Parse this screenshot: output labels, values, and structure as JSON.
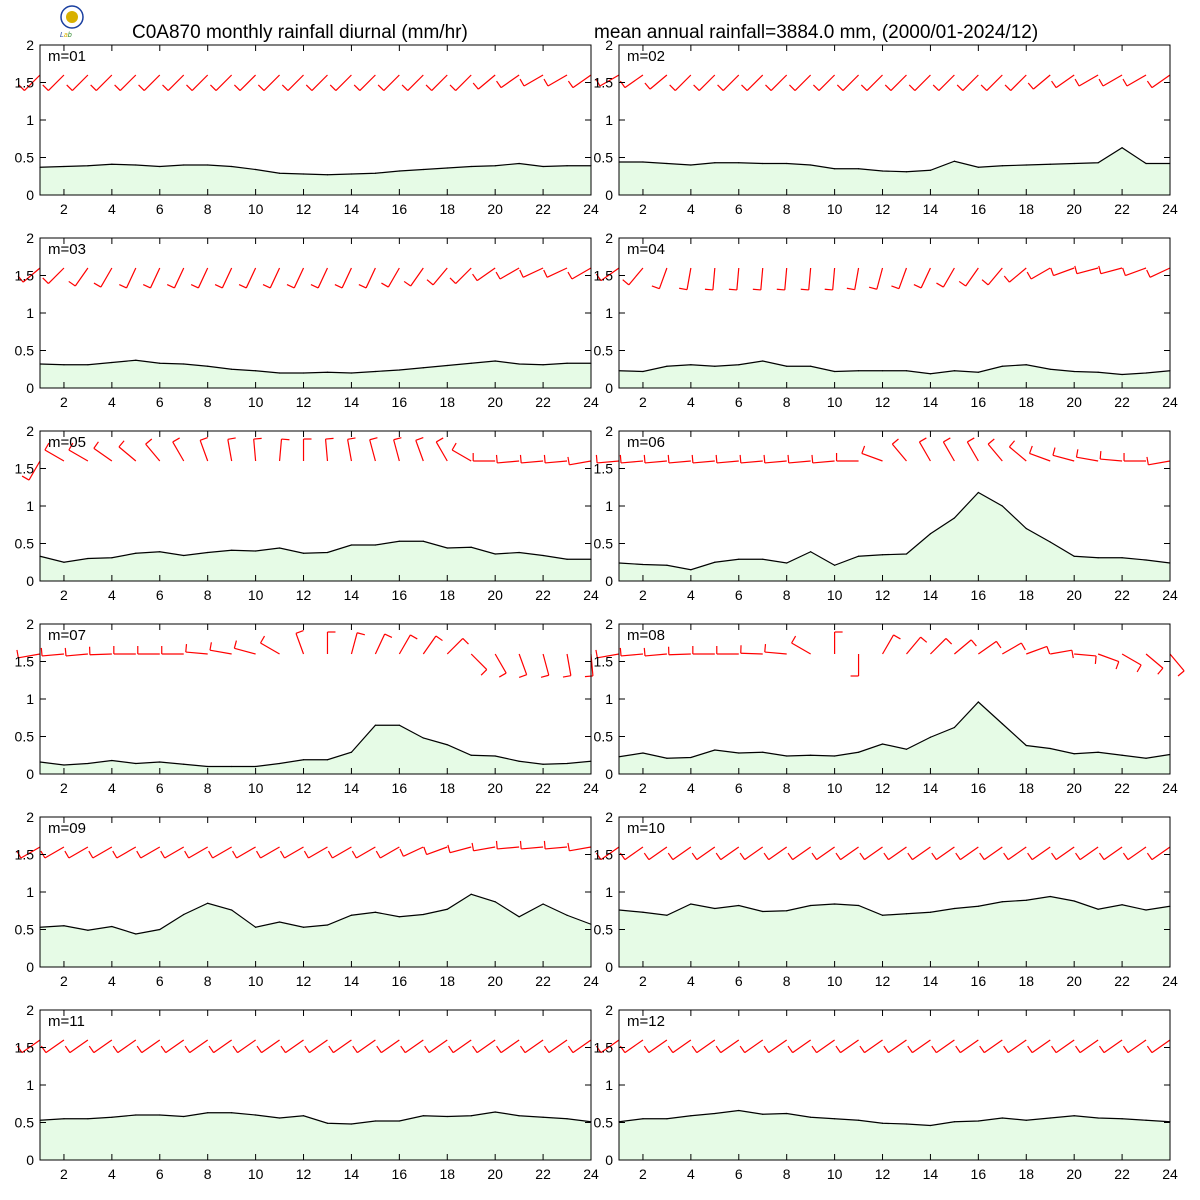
{
  "title_left": "C0A870 monthly rainfall diurnal (mm/hr)",
  "title_right": "mean annual rainfall=3884.0 mm, (2000/01-2024/12)",
  "logo": {
    "text": "Lab",
    "colors": [
      "#1a3fa0",
      "#d8b000",
      "#2c8a2c"
    ]
  },
  "colors": {
    "fill": "#e6fbe6",
    "line": "#000000",
    "barb": "#ff0000"
  },
  "chart_data": {
    "type": "area",
    "x": [
      1,
      2,
      3,
      4,
      5,
      6,
      7,
      8,
      9,
      10,
      11,
      12,
      13,
      14,
      15,
      16,
      17,
      18,
      19,
      20,
      21,
      22,
      23,
      24
    ],
    "xticks": [
      2,
      4,
      6,
      8,
      10,
      12,
      14,
      16,
      18,
      20,
      22,
      24
    ],
    "yticks": [
      0,
      0.5,
      1,
      1.5,
      2
    ],
    "ytick_labels": [
      "0",
      "0.5",
      "1",
      "1.5",
      "2"
    ],
    "xlim": [
      1,
      24
    ],
    "ylim": [
      0,
      2
    ],
    "wind_barb_level": 1.6,
    "panels": [
      {
        "label": "m=01",
        "values": [
          0.37,
          0.38,
          0.39,
          0.41,
          0.4,
          0.38,
          0.4,
          0.4,
          0.38,
          0.34,
          0.29,
          0.28,
          0.27,
          0.28,
          0.29,
          0.32,
          0.34,
          0.36,
          0.38,
          0.39,
          0.42,
          0.38,
          0.39,
          0.39
        ],
        "wind_dir": [
          225,
          225,
          225,
          225,
          225,
          225,
          225,
          225,
          225,
          225,
          225,
          225,
          225,
          225,
          225,
          225,
          225,
          225,
          225,
          230,
          235,
          240,
          240,
          235
        ]
      },
      {
        "label": "m=02",
        "values": [
          0.44,
          0.44,
          0.42,
          0.4,
          0.43,
          0.43,
          0.42,
          0.42,
          0.4,
          0.35,
          0.35,
          0.32,
          0.31,
          0.33,
          0.45,
          0.37,
          0.39,
          0.4,
          0.41,
          0.42,
          0.43,
          0.63,
          0.42,
          0.42
        ],
        "wind_dir": [
          240,
          235,
          230,
          225,
          225,
          225,
          225,
          225,
          225,
          225,
          225,
          225,
          225,
          225,
          225,
          225,
          225,
          225,
          230,
          235,
          240,
          240,
          240,
          235
        ]
      },
      {
        "label": "m=03",
        "values": [
          0.32,
          0.31,
          0.31,
          0.34,
          0.37,
          0.33,
          0.32,
          0.29,
          0.25,
          0.23,
          0.2,
          0.2,
          0.21,
          0.2,
          0.22,
          0.24,
          0.27,
          0.3,
          0.33,
          0.36,
          0.32,
          0.31,
          0.33,
          0.33
        ],
        "wind_dir": [
          230,
          225,
          215,
          210,
          205,
          205,
          205,
          205,
          205,
          205,
          205,
          205,
          205,
          205,
          205,
          210,
          215,
          220,
          225,
          235,
          240,
          245,
          245,
          240
        ]
      },
      {
        "label": "m=04",
        "values": [
          0.23,
          0.22,
          0.29,
          0.31,
          0.29,
          0.31,
          0.36,
          0.29,
          0.29,
          0.22,
          0.23,
          0.23,
          0.23,
          0.19,
          0.23,
          0.21,
          0.29,
          0.31,
          0.25,
          0.22,
          0.21,
          0.18,
          0.2,
          0.23
        ],
        "wind_dir": [
          235,
          220,
          200,
          190,
          185,
          185,
          185,
          185,
          185,
          185,
          190,
          195,
          200,
          205,
          210,
          215,
          220,
          230,
          240,
          250,
          255,
          255,
          250,
          245
        ]
      },
      {
        "label": "m=05",
        "values": [
          0.33,
          0.25,
          0.3,
          0.31,
          0.37,
          0.39,
          0.34,
          0.38,
          0.41,
          0.4,
          0.44,
          0.37,
          0.38,
          0.48,
          0.48,
          0.53,
          0.53,
          0.44,
          0.45,
          0.36,
          0.38,
          0.34,
          0.29,
          0.29
        ],
        "wind_dir": [
          210,
          300,
          300,
          305,
          310,
          320,
          330,
          340,
          350,
          355,
          5,
          0,
          355,
          350,
          345,
          345,
          340,
          330,
          300,
          270,
          265,
          265,
          265,
          260
        ]
      },
      {
        "label": "m=06",
        "values": [
          0.24,
          0.22,
          0.21,
          0.15,
          0.25,
          0.29,
          0.29,
          0.24,
          0.39,
          0.21,
          0.33,
          0.35,
          0.36,
          0.63,
          0.84,
          1.18,
          1.0,
          0.7,
          0.52,
          0.33,
          0.31,
          0.31,
          0.28,
          0.24
        ],
        "wind_dir": [
          265,
          265,
          265,
          265,
          265,
          265,
          265,
          265,
          265,
          265,
          270,
          290,
          320,
          330,
          330,
          330,
          320,
          310,
          290,
          285,
          280,
          275,
          270,
          260
        ]
      },
      {
        "label": "m=07",
        "values": [
          0.16,
          0.12,
          0.14,
          0.18,
          0.14,
          0.16,
          0.13,
          0.1,
          0.1,
          0.1,
          0.14,
          0.19,
          0.19,
          0.29,
          0.65,
          0.65,
          0.48,
          0.39,
          0.25,
          0.24,
          0.17,
          0.13,
          0.14,
          0.17
        ],
        "wind_dir": [
          260,
          265,
          265,
          268,
          270,
          270,
          270,
          275,
          280,
          285,
          300,
          340,
          0,
          15,
          25,
          30,
          35,
          45,
          135,
          150,
          160,
          165,
          170,
          175
        ]
      },
      {
        "label": "m=08",
        "values": [
          0.23,
          0.28,
          0.21,
          0.22,
          0.32,
          0.28,
          0.29,
          0.24,
          0.25,
          0.24,
          0.29,
          0.4,
          0.33,
          0.49,
          0.62,
          0.96,
          0.67,
          0.38,
          0.34,
          0.27,
          0.29,
          0.25,
          0.21,
          0.26
        ],
        "wind_dir": [
          260,
          265,
          265,
          268,
          270,
          270,
          272,
          275,
          300,
          0,
          180,
          30,
          40,
          45,
          50,
          55,
          60,
          70,
          80,
          95,
          110,
          120,
          130,
          140
        ]
      },
      {
        "label": "m=09",
        "values": [
          0.53,
          0.55,
          0.49,
          0.54,
          0.44,
          0.5,
          0.7,
          0.85,
          0.76,
          0.53,
          0.6,
          0.53,
          0.56,
          0.69,
          0.73,
          0.67,
          0.7,
          0.77,
          0.97,
          0.87,
          0.67,
          0.84,
          0.69,
          0.57
        ],
        "wind_dir": [
          240,
          240,
          240,
          240,
          240,
          240,
          240,
          240,
          240,
          240,
          240,
          240,
          240,
          240,
          240,
          240,
          245,
          250,
          255,
          260,
          265,
          265,
          265,
          260
        ]
      },
      {
        "label": "m=10",
        "values": [
          0.76,
          0.73,
          0.69,
          0.84,
          0.78,
          0.82,
          0.74,
          0.75,
          0.82,
          0.84,
          0.82,
          0.69,
          0.71,
          0.73,
          0.78,
          0.81,
          0.87,
          0.89,
          0.94,
          0.88,
          0.77,
          0.83,
          0.76,
          0.81
        ],
        "wind_dir": [
          235,
          235,
          235,
          235,
          235,
          235,
          235,
          235,
          235,
          235,
          235,
          235,
          235,
          235,
          235,
          235,
          235,
          235,
          235,
          235,
          235,
          235,
          235,
          235
        ]
      },
      {
        "label": "m=11",
        "values": [
          0.53,
          0.55,
          0.55,
          0.57,
          0.6,
          0.6,
          0.58,
          0.63,
          0.63,
          0.6,
          0.56,
          0.59,
          0.49,
          0.48,
          0.52,
          0.52,
          0.59,
          0.58,
          0.59,
          0.64,
          0.59,
          0.57,
          0.55,
          0.51
        ],
        "wind_dir": [
          235,
          235,
          235,
          235,
          235,
          235,
          235,
          235,
          235,
          235,
          235,
          235,
          235,
          235,
          235,
          235,
          235,
          235,
          235,
          235,
          235,
          235,
          235,
          235
        ]
      },
      {
        "label": "m=12",
        "values": [
          0.51,
          0.55,
          0.55,
          0.59,
          0.62,
          0.66,
          0.61,
          0.62,
          0.57,
          0.55,
          0.53,
          0.49,
          0.48,
          0.46,
          0.51,
          0.52,
          0.56,
          0.53,
          0.56,
          0.59,
          0.56,
          0.55,
          0.53,
          0.51
        ],
        "wind_dir": [
          235,
          235,
          235,
          235,
          235,
          235,
          235,
          235,
          235,
          235,
          235,
          235,
          235,
          235,
          235,
          235,
          235,
          235,
          235,
          235,
          235,
          235,
          235,
          235
        ]
      }
    ]
  }
}
